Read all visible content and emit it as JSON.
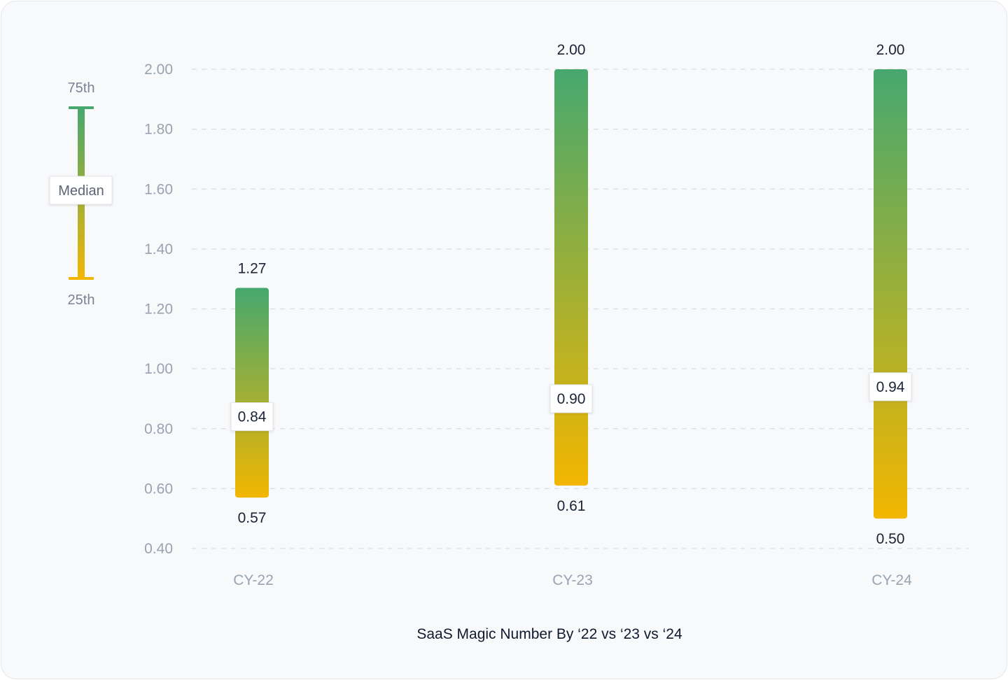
{
  "chart_data": {
    "type": "range-bar",
    "title": "SaaS Magic Number By ‘22 vs ‘23 vs ‘24",
    "categories": [
      "CY-22",
      "CY-23",
      "CY-24"
    ],
    "series": [
      {
        "name": "75th",
        "values": [
          1.27,
          2.0,
          2.0
        ]
      },
      {
        "name": "Median",
        "values": [
          0.84,
          0.9,
          0.94
        ]
      },
      {
        "name": "25th",
        "values": [
          0.57,
          0.61,
          0.5
        ]
      }
    ],
    "value_labels": {
      "p75": [
        "1.27",
        "2.00",
        "2.00"
      ],
      "median": [
        "0.84",
        "0.90",
        "0.94"
      ],
      "p25": [
        "0.57",
        "0.61",
        "0.50"
      ]
    },
    "yticks": [
      "0.40",
      "0.60",
      "0.80",
      "1.00",
      "1.20",
      "1.40",
      "1.60",
      "1.80",
      "2.00"
    ],
    "ylim": [
      0.4,
      2.0
    ],
    "grid": true,
    "legend": {
      "position": "left",
      "top_label": "75th",
      "middle_label": "Median",
      "bottom_label": "25th"
    },
    "colors": {
      "top": "#46a86f",
      "bottom": "#f2b600",
      "grid": "#d9dde3"
    }
  }
}
